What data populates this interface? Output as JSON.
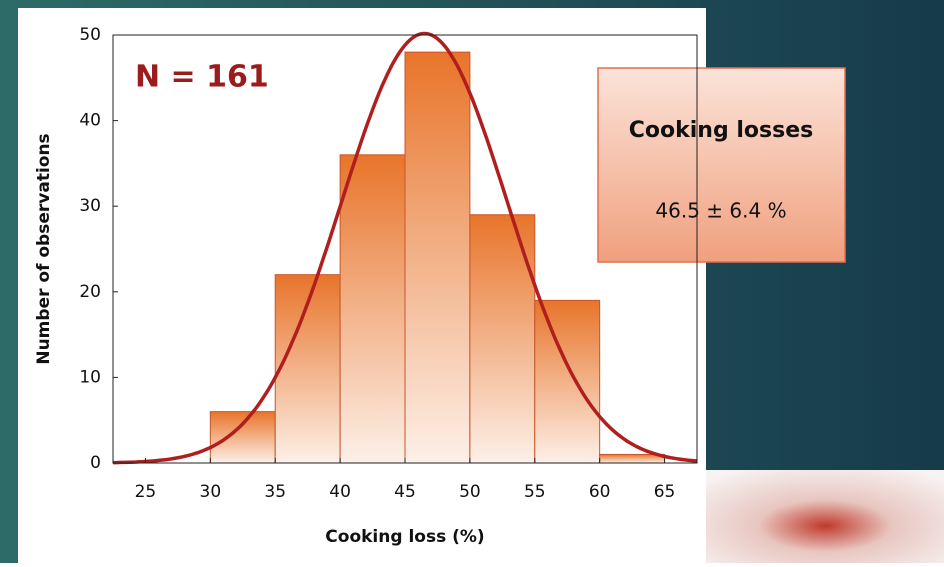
{
  "chart_data": {
    "type": "histogram",
    "annotation": "N = 161",
    "x_label": "Cooking loss (%)",
    "y_label": "Number of observations",
    "bins": [
      30,
      35,
      40,
      45,
      50,
      55,
      60,
      65
    ],
    "counts": [
      6,
      22,
      36,
      48,
      29,
      19,
      1
    ],
    "color": "#e8742a",
    "fit": {
      "type": "normal",
      "mean": 46.5,
      "sd": 6.4,
      "color": "#b01e1e"
    },
    "info_box": {
      "title": "Cooking losses",
      "text": "46.5 ± 6.4 %"
    },
    "xlim": [
      22.5,
      67.5
    ],
    "xticks": [
      25,
      30,
      35,
      40,
      45,
      50,
      55,
      60,
      65
    ],
    "ylim": [
      0,
      50
    ],
    "yticks": [
      0,
      10,
      20,
      30,
      40,
      50
    ]
  }
}
